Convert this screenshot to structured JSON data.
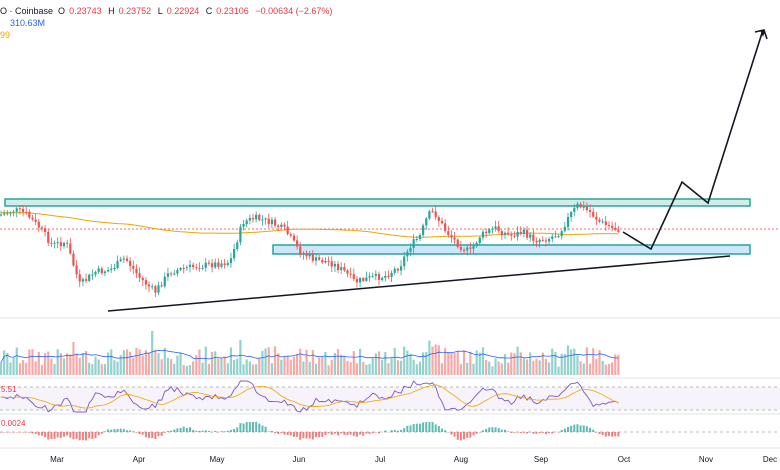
{
  "header": {
    "pair_fragment": "O · Coinbase",
    "open_label": "O",
    "open": "0.23743",
    "high_label": "H",
    "high": "0.23752",
    "low_label": "L",
    "low": "0.22924",
    "close_label": "C",
    "close": "0.23106",
    "change": "−0.00634 (−2.67%)",
    "volume": "310.63M",
    "ma_fragment": "99"
  },
  "colors": {
    "up": "#26a69a",
    "down": "#ef5350",
    "ma": "#f0a500",
    "zone_border": "#26a69a",
    "zone_top_fill": "#b2dfdb",
    "zone_bottom_fill": "#bbdefb",
    "rsi_line": "#7e57c2",
    "volume_ma": "#2962ff"
  },
  "chart_data": {
    "type": "candlestick",
    "x_tick_labels": [
      "Mar",
      "Apr",
      "May",
      "Jun",
      "Jul",
      "Aug",
      "Sep",
      "Oct",
      "Nov",
      "Dec"
    ],
    "rsi_fragment": "5.51",
    "macd_fragment": "0.0024",
    "annotations": {
      "resistance_zone": "horizontal zone across highs",
      "support_zone": "horizontal zone across mid range",
      "trendline": "rising support line from lows",
      "projection": "zig-zag arrow pointing up"
    }
  }
}
